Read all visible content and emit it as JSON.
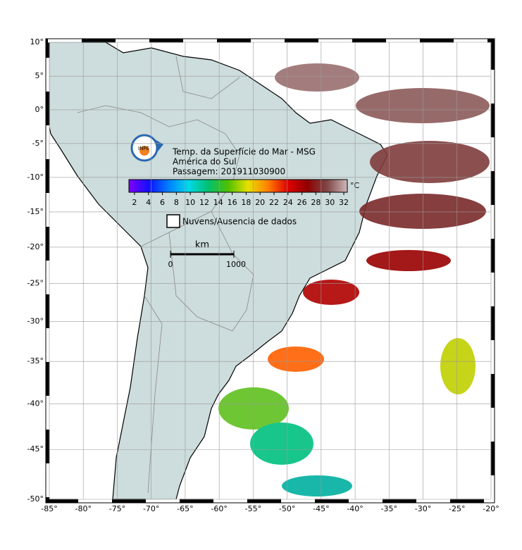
{
  "header": {
    "title": "Temp. da Superfície do Mar - MSG",
    "region": "América do Sul",
    "pass": "Passagem: 201911030900",
    "logo": "INPE"
  },
  "colorbar": {
    "ticks": [
      2,
      4,
      6,
      8,
      10,
      12,
      14,
      16,
      18,
      20,
      22,
      24,
      26,
      28,
      30,
      32
    ],
    "unit": "°C",
    "range": [
      1.2,
      32.5
    ],
    "colors": [
      "#8000ff",
      "#1010ff",
      "#0080ff",
      "#00d8e8",
      "#00c070",
      "#50c000",
      "#e8e000",
      "#ff8000",
      "#e00000",
      "#900000",
      "#804848",
      "#d0b8b8"
    ]
  },
  "legend": {
    "label": "Nuvens/Ausencia de dados"
  },
  "scale_bar": {
    "unit": "km",
    "start": "0",
    "end": "1000"
  },
  "map": {
    "lon_range": [
      -85,
      -20
    ],
    "lat_range": [
      -50,
      10
    ],
    "lon_ticks": [
      {
        "value": -85,
        "label": "-85°"
      },
      {
        "value": -80,
        "label": "-80°"
      },
      {
        "value": -75,
        "label": "-75°"
      },
      {
        "value": -70,
        "label": "-70°"
      },
      {
        "value": -65,
        "label": "-65°"
      },
      {
        "value": -60,
        "label": "-60°"
      },
      {
        "value": -55,
        "label": "-55°"
      },
      {
        "value": -50,
        "label": "-50°"
      },
      {
        "value": -45,
        "label": "-45°"
      },
      {
        "value": -40,
        "label": "-40°"
      },
      {
        "value": -35,
        "label": "-35°"
      },
      {
        "value": -30,
        "label": "-30°"
      },
      {
        "value": -25,
        "label": "-25°"
      },
      {
        "value": -20,
        "label": "-20°"
      }
    ],
    "lat_ticks": [
      {
        "value": 10,
        "label": "10°"
      },
      {
        "value": 5,
        "label": "5°"
      },
      {
        "value": 0,
        "label": "0°"
      },
      {
        "value": -5,
        "label": "-5°"
      },
      {
        "value": -10,
        "label": "-10°"
      },
      {
        "value": -15,
        "label": "-15°"
      },
      {
        "value": -20,
        "label": "-20°"
      },
      {
        "value": -25,
        "label": "-25°"
      },
      {
        "value": -30,
        "label": "-30°"
      },
      {
        "value": -35,
        "label": "-35°"
      },
      {
        "value": -40,
        "label": "-40°"
      },
      {
        "value": -45,
        "label": "-45°"
      },
      {
        "value": -50,
        "label": "-50°"
      }
    ]
  }
}
